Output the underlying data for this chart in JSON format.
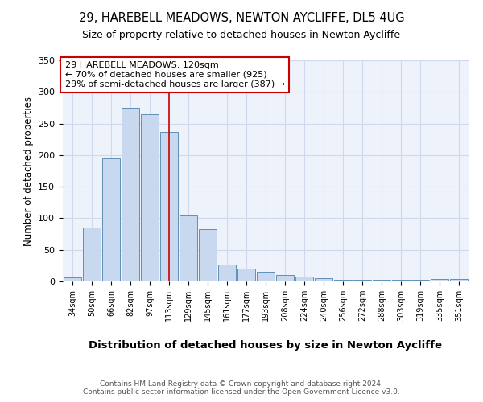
{
  "title1": "29, HAREBELL MEADOWS, NEWTON AYCLIFFE, DL5 4UG",
  "title2": "Size of property relative to detached houses in Newton Aycliffe",
  "xlabel": "Distribution of detached houses by size in Newton Aycliffe",
  "ylabel": "Number of detached properties",
  "categories": [
    "34sqm",
    "50sqm",
    "66sqm",
    "82sqm",
    "97sqm",
    "113sqm",
    "129sqm",
    "145sqm",
    "161sqm",
    "177sqm",
    "193sqm",
    "208sqm",
    "224sqm",
    "240sqm",
    "256sqm",
    "272sqm",
    "288sqm",
    "303sqm",
    "319sqm",
    "335sqm",
    "351sqm"
  ],
  "values": [
    7,
    85,
    195,
    275,
    265,
    237,
    105,
    83,
    27,
    20,
    15,
    10,
    8,
    5,
    3,
    3,
    3,
    3,
    3,
    4,
    4
  ],
  "bar_color": "#c8d8ee",
  "bar_edge_color": "#6090b8",
  "highlight_bar_index": 5,
  "highlight_line_color": "#cc0000",
  "annotation_text": "29 HAREBELL MEADOWS: 120sqm\n← 70% of detached houses are smaller (925)\n29% of semi-detached houses are larger (387) →",
  "annotation_fontsize": 8,
  "ylim": [
    0,
    350
  ],
  "yticks": [
    0,
    50,
    100,
    150,
    200,
    250,
    300,
    350
  ],
  "grid_color": "#d0d8ee",
  "background_color": "#eef2fa",
  "footer": "Contains HM Land Registry data © Crown copyright and database right 2024.\nContains public sector information licensed under the Open Government Licence v3.0.",
  "title1_fontsize": 10.5,
  "title2_fontsize": 9,
  "xlabel_fontsize": 9.5,
  "ylabel_fontsize": 8.5,
  "footer_fontsize": 6.5
}
